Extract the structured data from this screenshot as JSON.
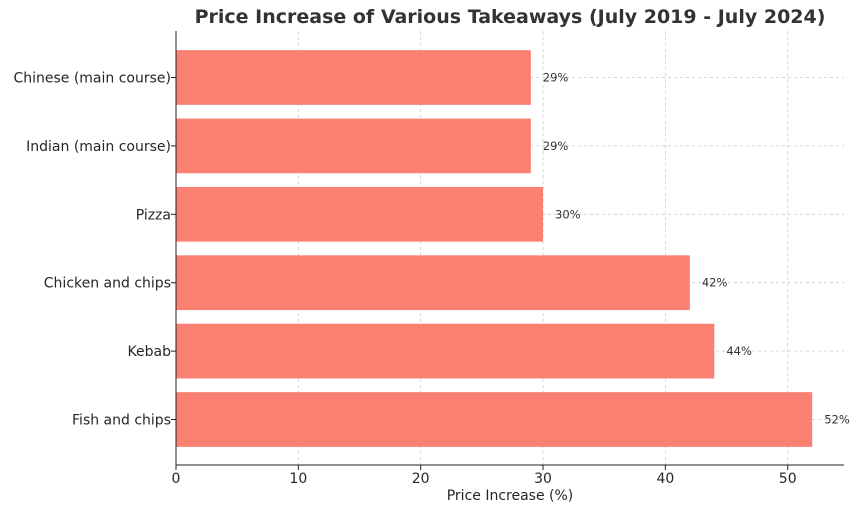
{
  "chart_data": {
    "type": "bar",
    "orientation": "horizontal",
    "title": "Price Increase of Various Takeaways (July 2019 - July 2024)",
    "xlabel": "Price Increase (%)",
    "ylabel": "",
    "categories": [
      "Chinese (main course)",
      "Indian (main course)",
      "Pizza",
      "Chicken and chips",
      "Kebab",
      "Fish and chips"
    ],
    "values": [
      29,
      29,
      30,
      42,
      44,
      52
    ],
    "data_labels": [
      "29%",
      "29%",
      "30%",
      "42%",
      "44%",
      "52%"
    ],
    "xlim": [
      0,
      54.6
    ],
    "xticks": [
      0,
      10,
      20,
      30,
      40,
      50
    ],
    "xtick_labels": [
      "0",
      "10",
      "20",
      "30",
      "40",
      "50"
    ],
    "grid": true,
    "bar_color": "#fa8072"
  }
}
